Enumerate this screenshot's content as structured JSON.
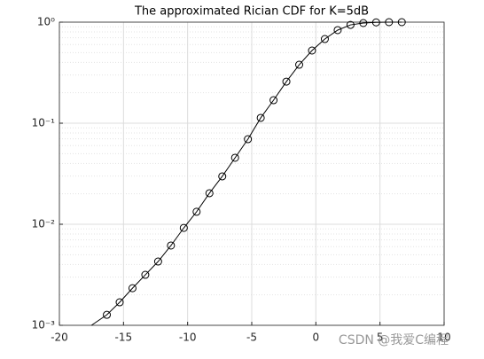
{
  "chart_data": {
    "type": "line",
    "title": "The approximated Rician CDF for K=5dB",
    "log_y": true,
    "grid": true,
    "minor_grid": true,
    "xlim": [
      -20,
      10
    ],
    "xticks": [
      -20,
      -15,
      -10,
      -5,
      0,
      5,
      10
    ],
    "ylim": [
      0.001,
      1
    ],
    "yticks": [
      {
        "value": 0.001,
        "label": "10⁻³"
      },
      {
        "value": 0.01,
        "label": "10⁻²"
      },
      {
        "value": 0.1,
        "label": "10⁻¹"
      },
      {
        "value": 1,
        "label": "10⁰"
      }
    ],
    "series": [
      {
        "style": "line",
        "color": "#000000",
        "x": [
          -17.5,
          -16.3,
          -15.3,
          -14.3,
          -13.3,
          -12.3,
          -11.3,
          -10.3,
          -9.3,
          -8.3,
          -7.3,
          -6.3,
          -5.3,
          -4.3,
          -3.3,
          -2.3,
          -1.3,
          -0.3,
          0.7,
          1.7,
          2.7,
          3.7,
          4.7,
          5.7,
          6.7
        ],
        "values": [
          0.001,
          0.00127,
          0.00169,
          0.00233,
          0.00316,
          0.00428,
          0.00616,
          0.0092,
          0.0133,
          0.0203,
          0.0298,
          0.0455,
          0.0695,
          0.113,
          0.169,
          0.258,
          0.379,
          0.524,
          0.681,
          0.834,
          0.94,
          0.98,
          0.995,
          1.0,
          1.0
        ]
      },
      {
        "style": "marker",
        "color": "#000000",
        "x": [
          -16.3,
          -15.3,
          -14.3,
          -13.3,
          -12.3,
          -11.3,
          -10.3,
          -9.3,
          -8.3,
          -7.3,
          -6.3,
          -5.3,
          -4.3,
          -3.3,
          -2.3,
          -1.3,
          -0.3,
          0.7,
          1.7,
          2.7,
          3.7,
          4.7,
          5.7,
          6.7
        ],
        "values": [
          0.00127,
          0.00169,
          0.00233,
          0.00316,
          0.00428,
          0.00616,
          0.0092,
          0.0133,
          0.0203,
          0.0298,
          0.0455,
          0.0695,
          0.113,
          0.169,
          0.258,
          0.379,
          0.524,
          0.681,
          0.834,
          0.94,
          0.98,
          0.995,
          1.0,
          1.0
        ]
      }
    ],
    "watermark": "CSDN @我爱C编程"
  }
}
